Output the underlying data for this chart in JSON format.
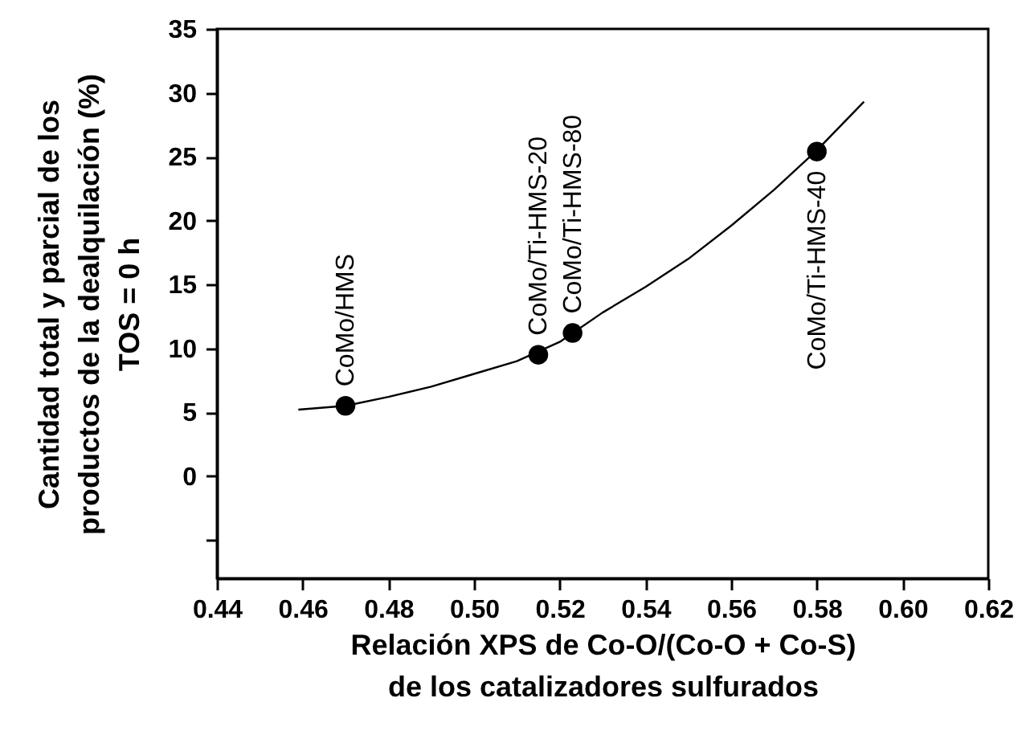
{
  "chart_data": {
    "type": "scatter",
    "xlabel": "Relación XPS de Co-O/(Co-O + Co-S)\nde los catalizadores sulfurados",
    "ylabel": "Cantidad total y parcial de los\nproductos de la dealquilación (%)\nTOS = 0 h",
    "xlim": [
      0.44,
      0.62
    ],
    "xticks": [
      0.44,
      0.46,
      0.48,
      {
        "value": 0.5,
        "label": "0.50"
      },
      0.52,
      0.54,
      0.56,
      0.58,
      {
        "value": 0.6,
        "label": "0.60"
      },
      0.62
    ],
    "ylim": [
      -8,
      35
    ],
    "yticks": [
      {
        "value": -5,
        "label": null
      },
      0,
      5,
      10,
      15,
      20,
      25,
      30,
      35
    ],
    "grid": false,
    "series": [
      {
        "type": "line",
        "color": "#000000",
        "marker": "none",
        "line_style": "solid",
        "x": [
          0.459,
          0.47,
          0.48,
          0.49,
          0.5,
          0.51,
          0.52,
          0.53,
          0.54,
          0.55,
          0.56,
          0.57,
          0.58,
          0.591
        ],
        "values": [
          5.2,
          5.5,
          6.2,
          7.0,
          8.0,
          9.0,
          10.5,
          12.8,
          14.8,
          17.0,
          19.6,
          22.4,
          25.5,
          29.3
        ]
      },
      {
        "color": "#000000",
        "marker": "circle",
        "x": [
          0.47,
          0.515,
          0.523,
          0.58
        ],
        "values": [
          5.5,
          9.5,
          11.2,
          25.4
        ]
      }
    ],
    "annotations": [
      {
        "text": "CoMo/HMS",
        "x": 0.47,
        "y": 5.5
      },
      {
        "text": "CoMo/Ti-HMS-20",
        "x": 0.515,
        "y": 9.5
      },
      {
        "text": "CoMo/Ti-HMS-80",
        "x": 0.523,
        "y": 11.2
      },
      {
        "text": "CoMo/Ti-HMS-40",
        "x": 0.58,
        "y": 25.4
      }
    ]
  }
}
